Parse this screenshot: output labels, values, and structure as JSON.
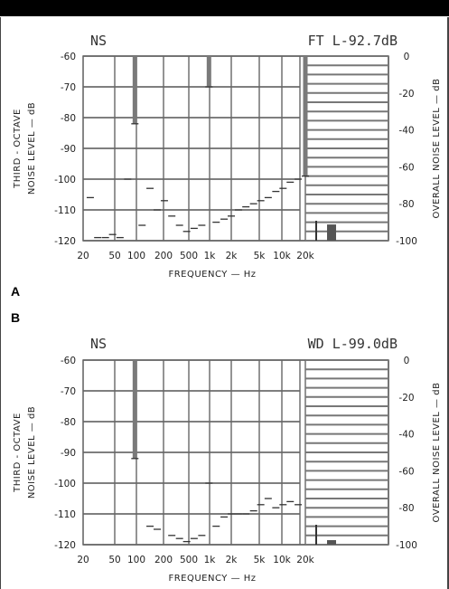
{
  "chart_data": [
    {
      "panel": "A",
      "type": "bar",
      "header_left": "NS",
      "header_right": "FT L-92.7dB",
      "left_axis": {
        "label_line1": "THIRD - OCTAVE",
        "label_line2": "NOISE LEVEL — dB",
        "ticks": [
          "-60",
          "-70",
          "-80",
          "-90",
          "-100",
          "-110",
          "-120"
        ],
        "ylim": [
          -120,
          -60
        ]
      },
      "right_axis": {
        "label": "OVERALL NOISE LEVEL — dB",
        "ticks": [
          "0",
          "-20",
          "-40",
          "-60",
          "-80",
          "-100"
        ],
        "ylim": [
          -100,
          0
        ]
      },
      "x_axis": {
        "label": "FREQUENCY — Hz",
        "ticks": [
          "20",
          "50",
          "100",
          "200",
          "500",
          "1k",
          "2k",
          "5k",
          "10k",
          "20k"
        ]
      },
      "third_octave_levels": [
        {
          "freq": 25,
          "level": -106
        },
        {
          "freq": 31.5,
          "level": -119
        },
        {
          "freq": 40,
          "level": -119
        },
        {
          "freq": 50,
          "level": -118
        },
        {
          "freq": 63,
          "level": -119
        },
        {
          "freq": 80,
          "level": -100
        },
        {
          "freq": 100,
          "level": -82
        },
        {
          "freq": 125,
          "level": -115
        },
        {
          "freq": 160,
          "level": -103
        },
        {
          "freq": 200,
          "level": -110
        },
        {
          "freq": 250,
          "level": -107
        },
        {
          "freq": 315,
          "level": -112
        },
        {
          "freq": 400,
          "level": -115
        },
        {
          "freq": 500,
          "level": -117
        },
        {
          "freq": 630,
          "level": -116
        },
        {
          "freq": 800,
          "level": -115
        },
        {
          "freq": 1000,
          "level": -70
        },
        {
          "freq": 1250,
          "level": -114
        },
        {
          "freq": 1600,
          "level": -113
        },
        {
          "freq": 2000,
          "level": -112
        },
        {
          "freq": 2500,
          "level": -110
        },
        {
          "freq": 3150,
          "level": -109
        },
        {
          "freq": 4000,
          "level": -108
        },
        {
          "freq": 5000,
          "level": -107
        },
        {
          "freq": 6300,
          "level": -106
        },
        {
          "freq": 8000,
          "level": -104
        },
        {
          "freq": 10000,
          "level": -103
        },
        {
          "freq": 12500,
          "level": -101
        },
        {
          "freq": 16000,
          "level": -100
        },
        {
          "freq": 20000,
          "level": -99
        }
      ],
      "overall_level_db": -92.7
    },
    {
      "panel": "B",
      "type": "bar",
      "header_left": "NS",
      "header_right": "WD L-99.0dB",
      "left_axis": {
        "label_line1": "THIRD - OCTAVE",
        "label_line2": "NOISE LEVEL — dB",
        "ticks": [
          "-60",
          "-70",
          "-80",
          "-90",
          "-100",
          "-110",
          "-120"
        ],
        "ylim": [
          -120,
          -60
        ]
      },
      "right_axis": {
        "label": "OVERALL NOISE LEVEL — dB",
        "ticks": [
          "0",
          "-20",
          "-40",
          "-60",
          "-80",
          "-100"
        ],
        "ylim": [
          -100,
          0
        ]
      },
      "x_axis": {
        "label": "FREQUENCY — Hz",
        "ticks": [
          "20",
          "50",
          "100",
          "200",
          "500",
          "1k",
          "2k",
          "5k",
          "10k",
          "20k"
        ]
      },
      "third_octave_levels": [
        {
          "freq": 100,
          "level": -92
        },
        {
          "freq": 160,
          "level": -114
        },
        {
          "freq": 200,
          "level": -115
        },
        {
          "freq": 315,
          "level": -117
        },
        {
          "freq": 400,
          "level": -118
        },
        {
          "freq": 500,
          "level": -119
        },
        {
          "freq": 630,
          "level": -118
        },
        {
          "freq": 800,
          "level": -117
        },
        {
          "freq": 1000,
          "level": -100
        },
        {
          "freq": 1250,
          "level": -114
        },
        {
          "freq": 1600,
          "level": -111
        },
        {
          "freq": 2000,
          "level": -110
        },
        {
          "freq": 2500,
          "level": -110
        },
        {
          "freq": 3150,
          "level": -110
        },
        {
          "freq": 4000,
          "level": -109
        },
        {
          "freq": 5000,
          "level": -107
        },
        {
          "freq": 6300,
          "level": -105
        },
        {
          "freq": 8000,
          "level": -108
        },
        {
          "freq": 10000,
          "level": -107
        },
        {
          "freq": 12500,
          "level": -106
        },
        {
          "freq": 16000,
          "level": -107
        }
      ],
      "overall_level_db": -99.0
    }
  ]
}
